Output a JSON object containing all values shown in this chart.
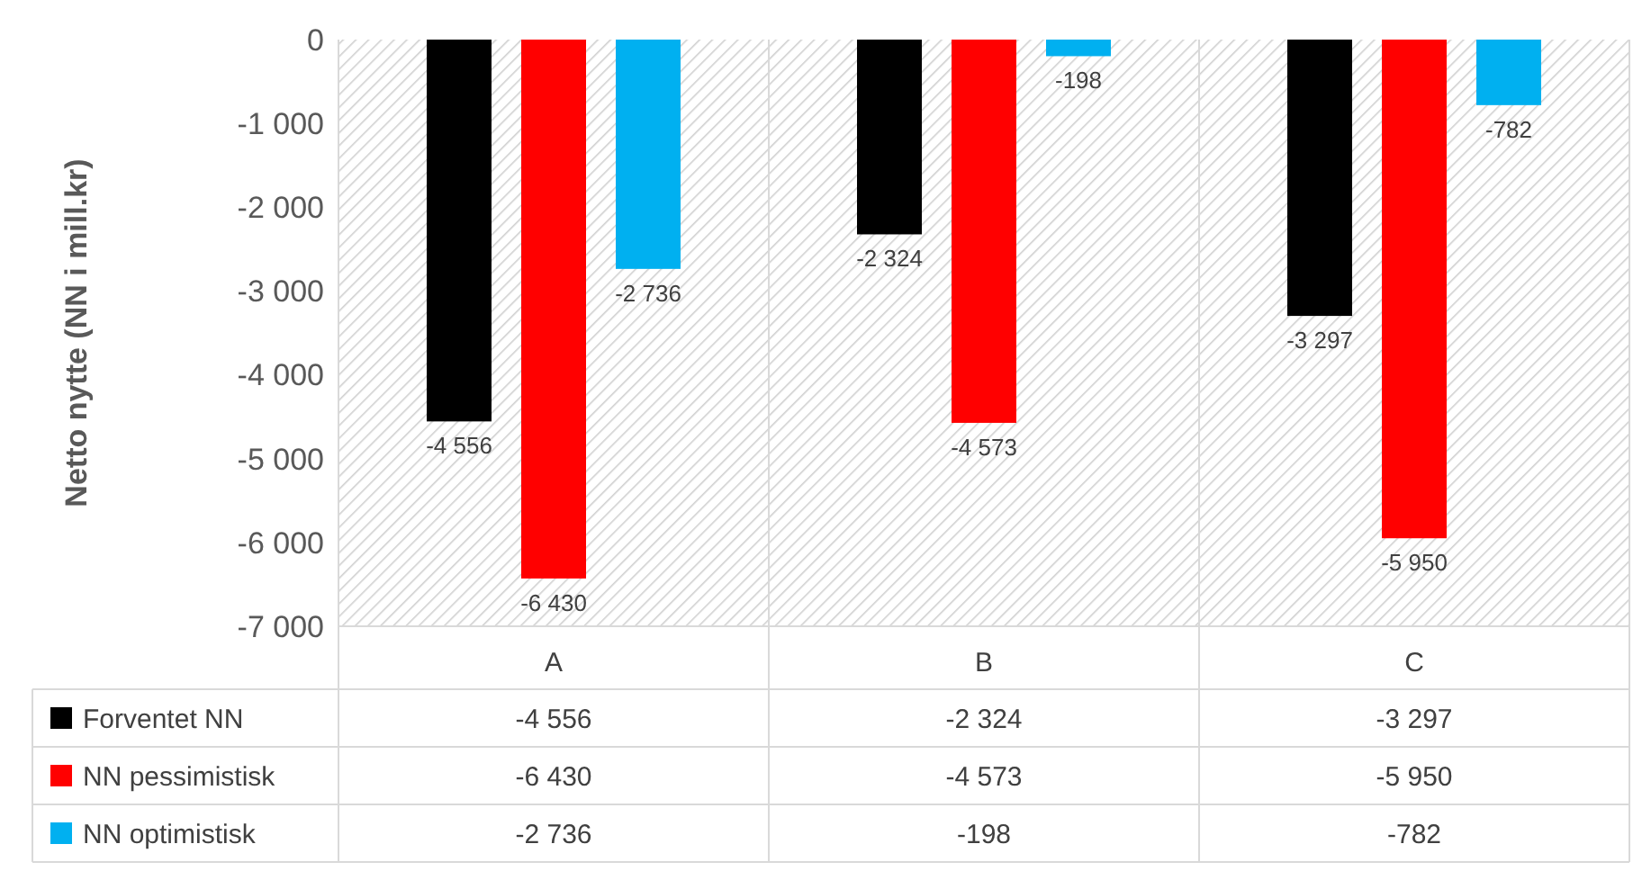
{
  "chart_data": {
    "type": "bar",
    "ylabel": "Netto nytte (NN i mill.kr)",
    "categories": [
      "A",
      "B",
      "C"
    ],
    "series": [
      {
        "name": "Forventet NN",
        "color": "#000000",
        "values": [
          -4556,
          -2324,
          -3297
        ],
        "value_labels": [
          "-4 556",
          "-2 324",
          "-3 297"
        ]
      },
      {
        "name": "NN pessimistisk",
        "color": "#ff0000",
        "values": [
          -6430,
          -4573,
          -5950
        ],
        "value_labels": [
          "-6 430",
          "-4 573",
          "-5 950"
        ]
      },
      {
        "name": "NN optimistisk",
        "color": "#00b0f0",
        "values": [
          -2736,
          -198,
          -782
        ],
        "value_labels": [
          "-2 736",
          "-198",
          "-782"
        ]
      }
    ],
    "ylim": [
      -7000,
      0
    ],
    "yticks": [
      {
        "value": 0,
        "label": "0"
      },
      {
        "value": -1000,
        "label": "-1 000"
      },
      {
        "value": -2000,
        "label": "-2 000"
      },
      {
        "value": -3000,
        "label": "-3 000"
      },
      {
        "value": -4000,
        "label": "-4 000"
      },
      {
        "value": -5000,
        "label": "-5 000"
      },
      {
        "value": -6000,
        "label": "-6 000"
      },
      {
        "value": -7000,
        "label": "-7 000"
      }
    ],
    "legend": "bottom",
    "grid": false
  }
}
